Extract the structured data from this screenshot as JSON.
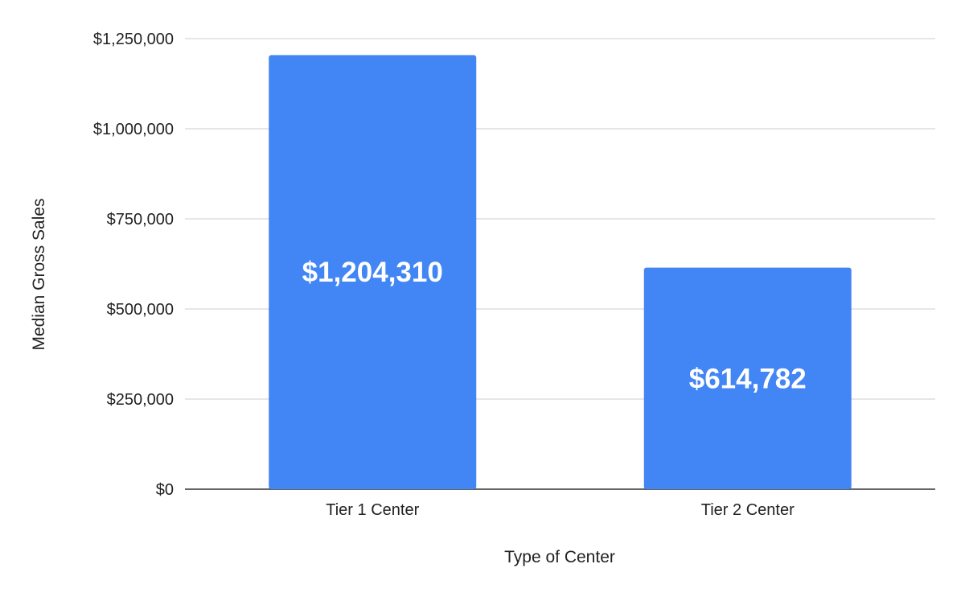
{
  "chart_data": {
    "type": "bar",
    "categories": [
      "Tier 1 Center",
      "Tier 2 Center"
    ],
    "values": [
      1204310,
      614782
    ],
    "data_labels": [
      "$1,204,310",
      "$614,782"
    ],
    "title": "",
    "xlabel": "Type of Center",
    "ylabel": "Median Gross Sales",
    "ylim": [
      0,
      1250000
    ],
    "y_ticks": [
      0,
      250000,
      500000,
      750000,
      1000000,
      1250000
    ],
    "y_tick_labels": [
      "$0",
      "$250,000",
      "$500,000",
      "$750,000",
      "$1,000,000",
      "$1,250,000"
    ],
    "grid": true,
    "legend": "none",
    "colors": {
      "bar": "#4285f4"
    }
  }
}
